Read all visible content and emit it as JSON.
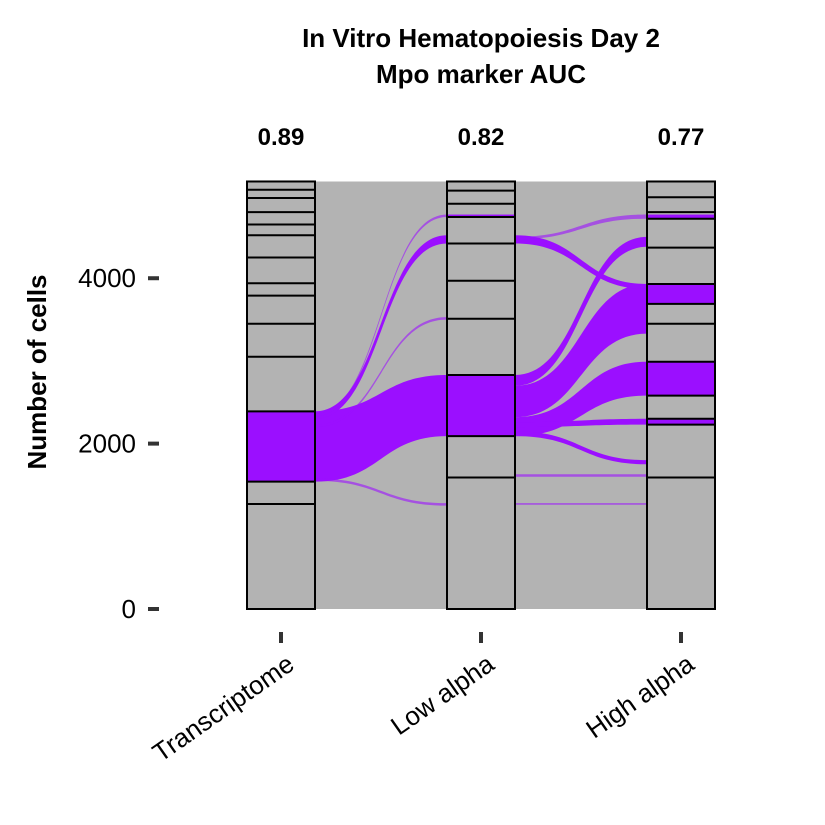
{
  "chart_data": {
    "type": "alluvial",
    "title": "In Vitro Hematopoiesis Day 2",
    "subtitle": "Mpo marker AUC",
    "ylabel": "Number of cells",
    "ylim": [
      0,
      5200
    ],
    "yticks": [
      0,
      2000,
      4000
    ],
    "axes": [
      "Transcriptome",
      "Low alpha",
      "High alpha"
    ],
    "auc": [
      "0.89",
      "0.82",
      "0.77"
    ],
    "colors": {
      "highlight": "#9B0FFF",
      "cluster_fill": "#B3B3B3",
      "flow_gray": "#B3B3B3",
      "border": "#000000"
    },
    "strata": [
      {
        "axis": "Transcriptome",
        "boundaries": [
          0,
          1270,
          1540,
          2390,
          3050,
          3450,
          3790,
          3940,
          4250,
          4520,
          4650,
          4800,
          4970,
          5070,
          5170
        ],
        "highlight": [
          [
            1540,
            2390
          ]
        ]
      },
      {
        "axis": "Low alpha",
        "boundaries": [
          0,
          1590,
          2090,
          2830,
          3510,
          3970,
          4420,
          4740,
          4900,
          5060,
          5170
        ],
        "highlight": [
          [
            2090,
            2830
          ],
          [
            4740,
            4770
          ]
        ]
      },
      {
        "axis": "High alpha",
        "boundaries": [
          0,
          1590,
          2230,
          2300,
          2580,
          2990,
          3450,
          3690,
          3930,
          4370,
          4720,
          4800,
          4980,
          5170
        ],
        "highlight": [
          [
            2230,
            2300
          ],
          [
            2580,
            2990
          ],
          [
            3690,
            3930
          ],
          [
            4720,
            4770
          ]
        ]
      }
    ],
    "highlight_flows": [
      {
        "from_axis": 0,
        "from": [
          1540,
          2390
        ],
        "to_axis": 1,
        "to": [
          2090,
          2830
        ]
      },
      {
        "from_axis": 0,
        "from": [
          2300,
          2390
        ],
        "to_axis": 1,
        "to": [
          4420,
          4520
        ]
      },
      {
        "from_axis": 0,
        "from": [
          2330,
          2360
        ],
        "to_axis": 1,
        "to": [
          4740,
          4770
        ]
      },
      {
        "from_axis": 0,
        "from": [
          2200,
          2230
        ],
        "to_axis": 1,
        "to": [
          3500,
          3530
        ]
      },
      {
        "from_axis": 0,
        "from": [
          1550,
          1580
        ],
        "to_axis": 1,
        "to": [
          1250,
          1280
        ]
      },
      {
        "from_axis": 1,
        "from": [
          2090,
          2320
        ],
        "to_axis": 2,
        "to": [
          2580,
          2990
        ]
      },
      {
        "from_axis": 1,
        "from": [
          2320,
          2700
        ],
        "to_axis": 2,
        "to": [
          3330,
          3930
        ]
      },
      {
        "from_axis": 1,
        "from": [
          2700,
          2830
        ],
        "to_axis": 2,
        "to": [
          4380,
          4500
        ]
      },
      {
        "from_axis": 1,
        "from": [
          4420,
          4520
        ],
        "to_axis": 2,
        "to": [
          3870,
          3930
        ]
      },
      {
        "from_axis": 1,
        "from": [
          4470,
          4500
        ],
        "to_axis": 2,
        "to": [
          4720,
          4770
        ]
      },
      {
        "from_axis": 1,
        "from": [
          2200,
          2260
        ],
        "to_axis": 2,
        "to": [
          2230,
          2300
        ]
      },
      {
        "from_axis": 1,
        "from": [
          2090,
          2150
        ],
        "to_axis": 2,
        "to": [
          1750,
          1800
        ]
      },
      {
        "from_axis": 1,
        "from": [
          1600,
          1630
        ],
        "to_axis": 2,
        "to": [
          1600,
          1630
        ]
      },
      {
        "from_axis": 1,
        "from": [
          1260,
          1280
        ],
        "to_axis": 2,
        "to": [
          1260,
          1280
        ]
      }
    ]
  }
}
